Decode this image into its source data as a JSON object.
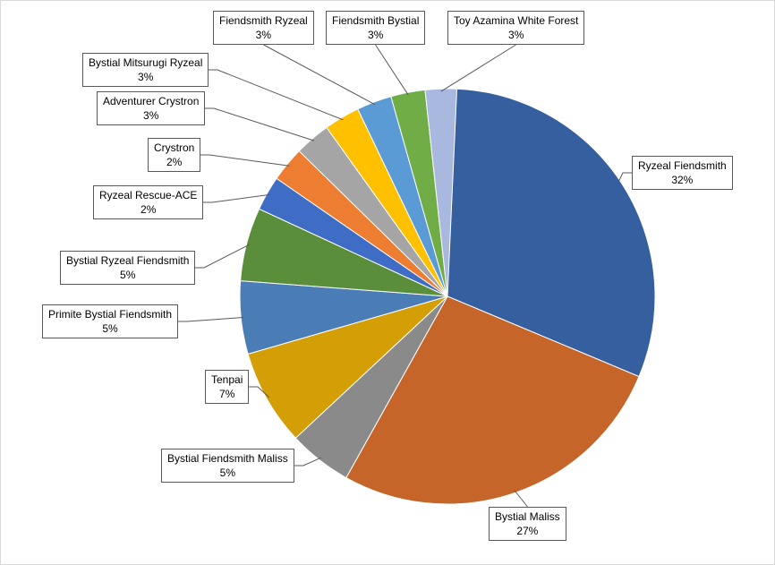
{
  "chart_data": {
    "type": "pie",
    "title": "",
    "slices": [
      {
        "name": "Ryzeal Fiendsmith",
        "value": 32,
        "label_pct": "32%",
        "color": "#365F9F"
      },
      {
        "name": "Bystial Maliss",
        "value": 27,
        "label_pct": "27%",
        "color": "#C5652A"
      },
      {
        "name": "Bystial Fiendsmith Maliss",
        "value": 5,
        "label_pct": "5%",
        "color": "#8A8A8A"
      },
      {
        "name": "Tenpai",
        "value": 7,
        "label_pct": "7%",
        "color": "#D49E07"
      },
      {
        "name": "Primite Bystial Fiendsmith",
        "value": 5,
        "label_pct": "5%",
        "color": "#4A7DB5"
      },
      {
        "name": "Bystial Ryzeal Fiendsmith",
        "value": 5,
        "label_pct": "5%",
        "color": "#5A8E3A"
      },
      {
        "name": "Ryzeal Rescue-ACE",
        "value": 2,
        "label_pct": "2%",
        "color": "#3F6CC4"
      },
      {
        "name": "Crystron",
        "value": 2,
        "label_pct": "2%",
        "color": "#ED7D31"
      },
      {
        "name": "Adventurer Crystron",
        "value": 3,
        "label_pct": "3%",
        "color": "#A5A5A5"
      },
      {
        "name": "Bystial Mitsurugi Ryzeal",
        "value": 3,
        "label_pct": "3%",
        "color": "#FFC000"
      },
      {
        "name": "Fiendsmith Ryzeal",
        "value": 3,
        "label_pct": "3%",
        "color": "#5B9BD5"
      },
      {
        "name": "Fiendsmith Bystial",
        "value": 3,
        "label_pct": "3%",
        "color": "#70AD47"
      },
      {
        "name": "Toy Azamina White Forest",
        "value": 3,
        "label_pct": "3%",
        "color": "#A9B8DF"
      }
    ],
    "legend": "none",
    "data_labels": "callouts",
    "start_angle": "12 o'clock",
    "direction": "clockwise"
  }
}
